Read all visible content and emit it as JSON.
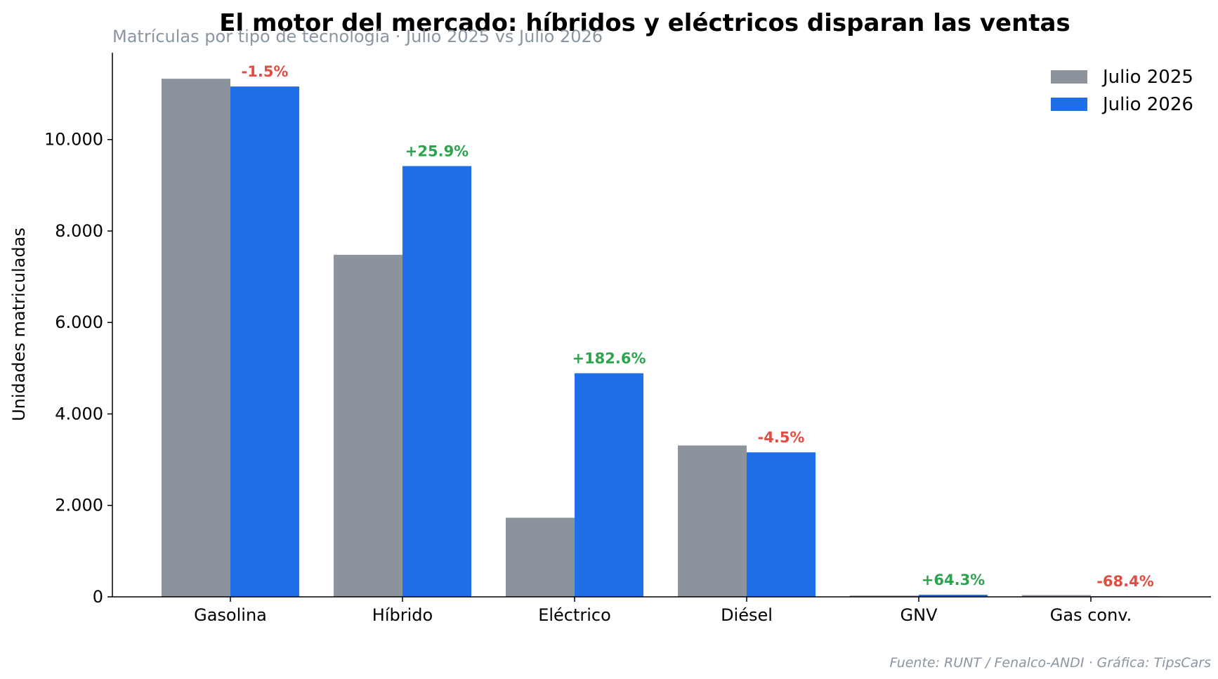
{
  "chart_data": {
    "type": "bar",
    "title": "El motor del mercado: híbridos y eléctricos disparan las ventas",
    "subtitle": "Matrículas por tipo de tecnología · Julio 2025 vs Julio 2026",
    "ylabel": "Unidades matriculadas",
    "xlabel": "",
    "categories": [
      "Gasolina",
      "Híbrido",
      "Eléctrico",
      "Diésel",
      "GNV",
      "Gas conv."
    ],
    "series": [
      {
        "name": "Julio 2025",
        "color": "#8c939c",
        "values": [
          11330,
          7480,
          1730,
          3310,
          28,
          38
        ]
      },
      {
        "name": "Julio 2026",
        "color": "#1f6fe8",
        "values": [
          11160,
          9420,
          4890,
          3160,
          46,
          12
        ]
      }
    ],
    "changes": [
      "-1.5%",
      "+25.9%",
      "+182.6%",
      "-4.5%",
      "+64.3%",
      "-68.4%"
    ],
    "change_colors": {
      "positive": "#2ca44e",
      "negative": "#e24c43"
    },
    "yticks": [
      0,
      2000,
      4000,
      6000,
      8000,
      10000
    ],
    "ytick_labels": [
      "0",
      "2.000",
      "4.000",
      "6.000",
      "8.000",
      "10.000"
    ],
    "ylim": [
      0,
      11900
    ],
    "grid": false,
    "legend": "top-right",
    "source": "Fuente: RUNT / Fenalco-ANDI · Gráfica: TipsCars"
  }
}
